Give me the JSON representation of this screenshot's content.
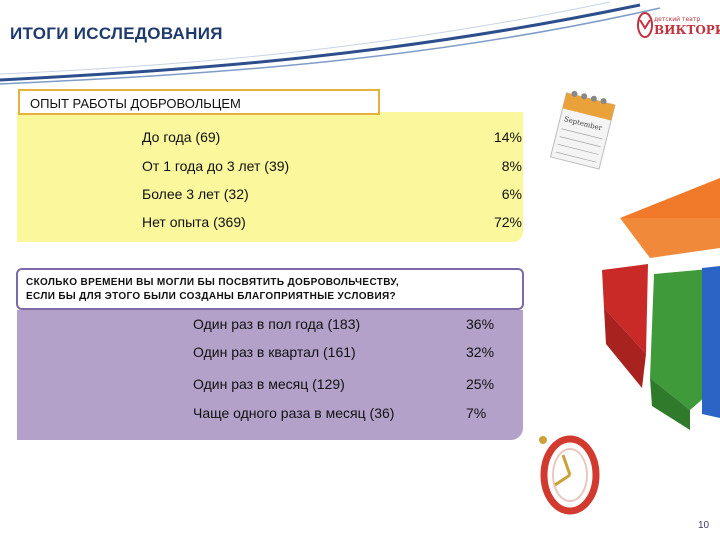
{
  "header": {
    "title": "ИТОГИ ИССЛЕДОВАНИЯ",
    "logo_small": "детский театр",
    "logo_big": "ВИКТОРИЯ"
  },
  "section1": {
    "heading": "ОПЫТ РАБОТЫ ДОБРОВОЛЬЦЕМ",
    "rows": [
      {
        "label": "До года (69)",
        "value": "14%"
      },
      {
        "label": "От 1 года до 3 лет (39)",
        "value": "8%"
      },
      {
        "label": "Более 3 лет (32)",
        "value": "6%"
      },
      {
        "label": "Нет опыта (369)",
        "value": "72%"
      }
    ]
  },
  "section2": {
    "heading_line1": "СКОЛЬКО ВРЕМЕНИ ВЫ МОГЛИ БЫ ПОСВЯТИТЬ ДОБРОВОЛЬЧЕСТВУ,",
    "heading_line2": "ЕСЛИ БЫ ДЛЯ ЭТОГО БЫЛИ СОЗДАНЫ БЛАГОПРИЯТНЫЕ УСЛОВИЯ?",
    "rows": [
      {
        "label": "Один раз в пол года (183)",
        "value": "36%"
      },
      {
        "label": "Один раз в квартал (161)",
        "value": "32%"
      },
      {
        "label": "Один раз в месяц (129)",
        "value": "25%"
      },
      {
        "label": "Чаще одного раза в месяц (36)",
        "value": "7%"
      }
    ]
  },
  "decor": {
    "calendar_text": "September"
  },
  "footer": {
    "page_number": "10"
  },
  "colors": {
    "title": "#1f3a6d",
    "section1_fill": "#fbf79c",
    "section1_border": "#e3b33b",
    "section2_fill": "#b3a1c9",
    "section2_border": "#7e6aa8",
    "pie_orange": "#f07a2a",
    "pie_red": "#d9322e",
    "pie_green": "#3f9a3a",
    "pie_blue": "#2b64c4"
  }
}
